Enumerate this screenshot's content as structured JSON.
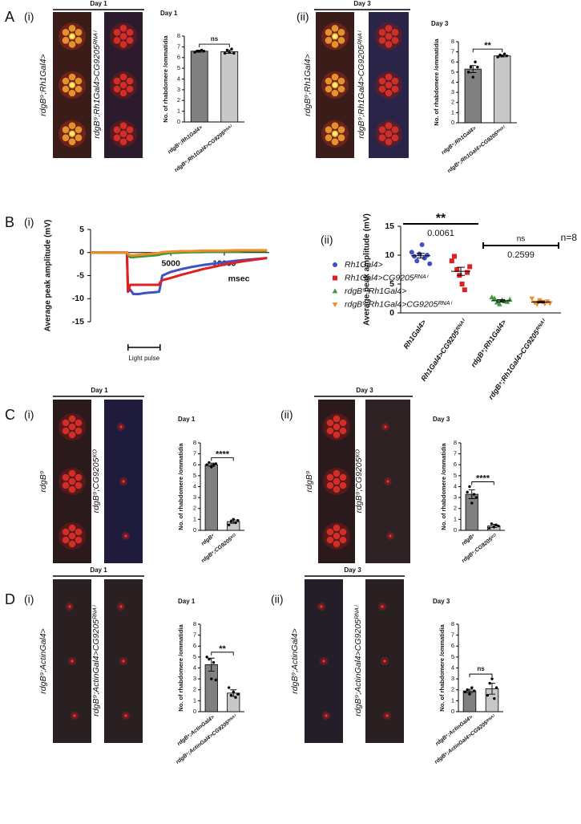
{
  "panels": [
    {
      "letter": "A",
      "sub": "(i)",
      "day": "Day 1",
      "image_labels": [
        "rdgB⁹;Rh1Gal4>",
        "rdgB⁹;Rh1Gal4>CG9205ᴿᴺᴬⁱ"
      ]
    },
    {
      "sub": "(ii)",
      "day": "Day 3",
      "image_labels": [
        "rdgB⁹;Rh1Gal4>",
        "rdgB⁹;Rh1Gal4>CG9205ᴿᴺᴬⁱ"
      ]
    },
    {
      "letter": "B",
      "sub": "(i)"
    },
    {
      "sub": "(ii)"
    },
    {
      "letter": "C",
      "sub": "(i)",
      "day": "Day 1",
      "image_labels": [
        "rdgB⁹",
        "rdgB⁹;CG9205ᴷᴼ"
      ]
    },
    {
      "sub": "(ii)",
      "day": "Day 3",
      "image_labels": [
        "rdgB⁹",
        "rdgB⁹;CG9205ᴷᴼ"
      ]
    },
    {
      "letter": "D",
      "sub": "(i)",
      "day": "Day 1",
      "image_labels": [
        "rdgB⁹;ActinGal4>",
        "rdgB⁹;ActinGal4>CG9205ᴿᴺᴬⁱ"
      ]
    },
    {
      "sub": "(ii)",
      "day": "Day 3",
      "image_labels": [
        "rdgB⁹;ActinGal4>",
        "rdgB⁹;ActinGal4>CG9205ᴿᴺᴬⁱ"
      ]
    }
  ],
  "chart_data": [
    {
      "type": "bar",
      "title": "Day 1",
      "ylabel": "No. of rhabdomere /ommatidia",
      "categories": [
        "rdgB⁹;Rh1Gal4>",
        "rdgB⁹;Rh1Gal4>CG9205ᴿᴺᴬⁱ"
      ],
      "values": [
        6.6,
        6.55
      ],
      "errors": [
        0.1,
        0.15
      ],
      "points": [
        [
          6.5,
          6.6,
          6.6,
          6.7,
          6.6
        ],
        [
          6.4,
          6.7,
          6.5,
          6.8,
          6.4
        ]
      ],
      "colors": [
        "#808080",
        "#c8c8c8"
      ],
      "ylim": [
        0,
        8
      ],
      "yticks": [
        0,
        1,
        2,
        3,
        4,
        5,
        6,
        7,
        8
      ],
      "significance": "ns"
    },
    {
      "type": "bar",
      "title": "Day 3",
      "ylabel": "No. of rhabdomere /ommatidia",
      "categories": [
        "rdgB⁹;Rh1Gal4>",
        "rdgB⁹;Rh1Gal4>CG9205ᴿᴺᴬⁱ"
      ],
      "values": [
        5.3,
        6.6
      ],
      "errors": [
        0.35,
        0.1
      ],
      "points": [
        [
          5.0,
          5.5,
          4.5,
          6.0,
          5.5
        ],
        [
          6.5,
          6.7,
          6.6,
          6.8,
          6.6
        ]
      ],
      "colors": [
        "#808080",
        "#c8c8c8"
      ],
      "ylim": [
        0,
        8
      ],
      "yticks": [
        0,
        1,
        2,
        3,
        4,
        5,
        6,
        7,
        8
      ],
      "significance": "**"
    },
    {
      "type": "line",
      "ylabel": "Average peak amplitude (mV)",
      "xlabel": "msec",
      "x": [
        -2500,
        -1000,
        0,
        900,
        1000,
        1200,
        1500,
        2000,
        2500,
        3000,
        3500,
        3900,
        4000,
        4200,
        5000,
        6000,
        7000,
        8000,
        9000,
        10000,
        11000,
        12000,
        13000,
        14000
      ],
      "xlim": [
        -2500,
        14200
      ],
      "ylim": [
        -15,
        5
      ],
      "xticks": [
        5000,
        10000
      ],
      "yticks": [
        5,
        0,
        -5,
        -10,
        -15
      ],
      "series": [
        {
          "name": "Rh1Gal4>",
          "color": "#3f51c4",
          "marker": "circle",
          "values": [
            0,
            0,
            0,
            0,
            -8.5,
            -8.0,
            -9.0,
            -9.0,
            -8.8,
            -8.7,
            -8.6,
            -8.5,
            -7.5,
            -5.0,
            -4.2,
            -3.6,
            -3.1,
            -2.7,
            -2.4,
            -2.1,
            -1.8,
            -1.6,
            -1.4,
            -1.2
          ]
        },
        {
          "name": "Rh1Gal4>CG9205ᴿᴺᴬⁱ",
          "color": "#e02020",
          "marker": "square",
          "values": [
            0,
            0,
            0,
            0,
            -8.5,
            -7.0,
            -7.0,
            -7.0,
            -7.0,
            -7.0,
            -7.0,
            -7.0,
            -6.5,
            -6.0,
            -5.5,
            -4.8,
            -4.2,
            -3.6,
            -3.1,
            -2.6,
            -2.2,
            -1.8,
            -1.5,
            -1.2
          ]
        },
        {
          "name": "rdgB⁹;Rh1Gal4>",
          "color": "#3a9a3a",
          "marker": "triangle",
          "values": [
            0,
            0,
            0,
            0,
            -0.5,
            -1.0,
            -1.0,
            -0.9,
            -0.8,
            -0.7,
            -0.6,
            -0.5,
            -0.4,
            -0.3,
            -0.1,
            0,
            0.1,
            0.1,
            0.2,
            0.2,
            0.2,
            0.3,
            0.3,
            0.3
          ]
        },
        {
          "name": "rdgB⁹;Rh1Gal4>CG9205ᴿᴺᴬⁱ",
          "color": "#f28c28",
          "marker": "triangle-down",
          "values": [
            0,
            0,
            0,
            0,
            -0.3,
            -0.6,
            -0.6,
            -0.5,
            -0.4,
            -0.3,
            -0.2,
            -0.1,
            0,
            0.1,
            0.2,
            0.3,
            0.3,
            0.4,
            0.4,
            0.4,
            0.5,
            0.5,
            0.5,
            0.5
          ]
        }
      ],
      "light_pulse": {
        "label": "Light pulse",
        "range": [
          1000,
          4000
        ]
      }
    },
    {
      "type": "strip",
      "ylabel": "Average peak amplitude (mV)",
      "categories": [
        "Rh1Gal4>",
        "Rh1Gal4>CG9205ᴿᴺᴬⁱ",
        "rdgB⁹;Rh1Gal4>",
        "rdgB⁹;Rh1Gal4>CG9205ᴿᴺᴬⁱ"
      ],
      "points": [
        [
          10.5,
          9.8,
          9.0,
          10.2,
          11.8,
          9.5,
          10.0,
          8.5
        ],
        [
          9.0,
          9.8,
          7.5,
          6.5,
          5.0,
          4.0,
          7.0,
          8.0
        ],
        [
          2.7,
          2.5,
          1.8,
          1.5,
          2.2,
          2.0,
          1.9,
          2.3
        ],
        [
          2.5,
          1.8,
          1.5,
          2.2,
          1.9,
          1.6,
          2.0,
          1.7
        ]
      ],
      "means": [
        9.9,
        7.2,
        2.1,
        1.9
      ],
      "errors": [
        0.4,
        0.7,
        0.2,
        0.15
      ],
      "colors": [
        "#3f51c4",
        "#e02020",
        "#3a9a3a",
        "#f28c28"
      ],
      "markers": [
        "circle",
        "square",
        "triangle",
        "triangle-down"
      ],
      "ylim": [
        0,
        15
      ],
      "yticks": [
        0,
        5,
        10,
        15
      ],
      "comparisons": [
        {
          "stars": "**",
          "p": "0.0061"
        },
        {
          "stars": "ns",
          "p": "0.2599"
        }
      ],
      "note": "n=8"
    },
    {
      "type": "bar",
      "title": "Day 1",
      "ylabel": "No. of rhabdomere /ommatidia",
      "categories": [
        "rdgB⁹",
        "rdgB⁹;CG9205ᴷᴼ"
      ],
      "values": [
        6.0,
        0.8
      ],
      "errors": [
        0.15,
        0.15
      ],
      "points": [
        [
          6.0,
          6.2,
          5.8,
          6.0,
          6.1
        ],
        [
          0.5,
          0.8,
          1.0,
          0.7,
          0.9
        ]
      ],
      "colors": [
        "#808080",
        "#c8c8c8"
      ],
      "ylim": [
        0,
        8
      ],
      "yticks": [
        0,
        1,
        2,
        3,
        4,
        5,
        6,
        7,
        8
      ],
      "significance": "****"
    },
    {
      "type": "bar",
      "title": "Day 3",
      "ylabel": "No. of rhabdomere /ommatidia",
      "categories": [
        "rdgB⁹",
        "rdgB⁹;CG9205ᴷᴼ"
      ],
      "values": [
        3.3,
        0.4
      ],
      "errors": [
        0.4,
        0.15
      ],
      "points": [
        [
          3.5,
          4.0,
          2.5,
          3.3,
          3.0
        ],
        [
          0.2,
          0.6,
          0.3,
          0.5,
          0.4
        ]
      ],
      "colors": [
        "#808080",
        "#c8c8c8"
      ],
      "ylim": [
        0,
        8
      ],
      "yticks": [
        0,
        1,
        2,
        3,
        4,
        5,
        6,
        7,
        8
      ],
      "significance": "****"
    },
    {
      "type": "bar",
      "title": "Day 1",
      "ylabel": "No. of rhabdomere /ommatidia",
      "categories": [
        "rdgB⁹;ActinGal4>",
        "rdgB⁹;ActinGal4>CG9205ᴿᴺᴬⁱ"
      ],
      "values": [
        4.3,
        1.7
      ],
      "errors": [
        0.6,
        0.3
      ],
      "points": [
        [
          5.0,
          4.8,
          3.0,
          4.5,
          2.9
        ],
        [
          2.2,
          1.5,
          1.8,
          1.3,
          1.6
        ]
      ],
      "colors": [
        "#808080",
        "#c8c8c8"
      ],
      "ylim": [
        0,
        8
      ],
      "yticks": [
        0,
        1,
        2,
        3,
        4,
        5,
        6,
        7,
        8
      ],
      "significance": "**"
    },
    {
      "type": "bar",
      "title": "Day 3",
      "ylabel": "No. of rhabdomere /ommatidia",
      "categories": [
        "rdgB⁹;ActinGal4>",
        "rdgB⁹;ActinGal4>CG9205ᴿᴺᴬⁱ"
      ],
      "values": [
        1.9,
        2.1
      ],
      "errors": [
        0.15,
        0.5
      ],
      "points": [
        [
          1.8,
          2.0,
          1.6,
          2.2,
          1.9
        ],
        [
          1.5,
          2.6,
          3.0,
          1.2,
          2.2
        ]
      ],
      "colors": [
        "#808080",
        "#c8c8c8"
      ],
      "ylim": [
        0,
        8
      ],
      "yticks": [
        0,
        1,
        2,
        3,
        4,
        5,
        6,
        7,
        8
      ],
      "significance": "ns"
    }
  ]
}
